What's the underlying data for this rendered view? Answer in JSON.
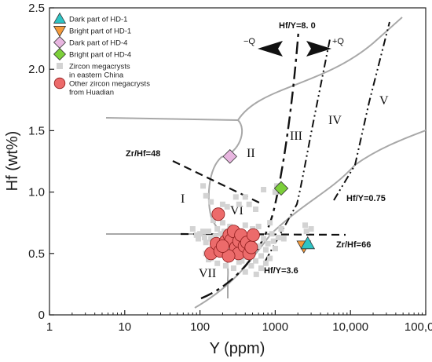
{
  "chart_data": {
    "type": "scatter",
    "xlabel": "Y (ppm)",
    "ylabel": "Hf (wt%)",
    "xscale": "log",
    "xlim": [
      1,
      100000
    ],
    "ylim": [
      0,
      2.5
    ],
    "x_ticks": [
      {
        "value": 1,
        "label": "1"
      },
      {
        "value": 10,
        "label": "10"
      },
      {
        "value": 100,
        "label": "100"
      },
      {
        "value": 1000,
        "label": "1000"
      },
      {
        "value": 10000,
        "label": "10,000"
      },
      {
        "value": 100000,
        "label": "100,000"
      }
    ],
    "y_ticks": [
      {
        "value": 0,
        "label": "0"
      },
      {
        "value": 0.5,
        "label": "0.5"
      },
      {
        "value": 1.0,
        "label": "1.0"
      },
      {
        "value": 1.5,
        "label": "1.5"
      },
      {
        "value": 2.0,
        "label": "2.0"
      },
      {
        "value": 2.5,
        "label": "2.5"
      }
    ],
    "legend_position": "top-left",
    "series": [
      {
        "name": "Dark part of HD-1",
        "marker": "triangle-up",
        "color": "#2ec4c4",
        "points": [
          [
            2700,
            0.58
          ]
        ]
      },
      {
        "name": "Bright part of  HD-1",
        "marker": "triangle-down",
        "color": "#f59a3a",
        "points": [
          [
            2400,
            0.56
          ]
        ]
      },
      {
        "name": "Dark part of HD-4",
        "marker": "diamond",
        "color": "#e8b6e0",
        "points": [
          [
            250,
            1.29
          ]
        ]
      },
      {
        "name": "Bright part of HD-4",
        "marker": "diamond",
        "color": "#7ccf3a",
        "points": [
          [
            1200,
            1.03
          ]
        ]
      },
      {
        "name": "Zircon megacrysts\nin eastern China",
        "marker": "square",
        "color": "#d3d3d3",
        "points": [
          [
            110,
            1.05
          ],
          [
            120,
            0.97
          ],
          [
            140,
            0.92
          ],
          [
            200,
            0.9
          ],
          [
            230,
            0.88
          ],
          [
            300,
            0.96
          ],
          [
            330,
            0.9
          ],
          [
            400,
            0.96
          ],
          [
            450,
            0.9
          ],
          [
            550,
            0.86
          ],
          [
            700,
            1.02
          ],
          [
            1000,
            1.0
          ],
          [
            1050,
            1.05
          ],
          [
            850,
            0.75
          ],
          [
            600,
            0.72
          ],
          [
            150,
            0.77
          ],
          [
            200,
            0.75
          ],
          [
            250,
            0.72
          ],
          [
            300,
            0.7
          ],
          [
            400,
            0.73
          ],
          [
            500,
            0.7
          ],
          [
            80,
            0.7
          ],
          [
            90,
            0.65
          ],
          [
            95,
            0.62
          ],
          [
            100,
            0.66
          ],
          [
            110,
            0.68
          ],
          [
            115,
            0.63
          ],
          [
            120,
            0.59
          ],
          [
            130,
            0.68
          ],
          [
            140,
            0.62
          ],
          [
            150,
            0.56
          ],
          [
            160,
            0.64
          ],
          [
            170,
            0.6
          ],
          [
            180,
            0.54
          ],
          [
            190,
            0.66
          ],
          [
            200,
            0.58
          ],
          [
            210,
            0.5
          ],
          [
            220,
            0.62
          ],
          [
            230,
            0.55
          ],
          [
            240,
            0.47
          ],
          [
            250,
            0.6
          ],
          [
            260,
            0.52
          ],
          [
            280,
            0.57
          ],
          [
            300,
            0.48
          ],
          [
            320,
            0.62
          ],
          [
            340,
            0.55
          ],
          [
            360,
            0.44
          ],
          [
            380,
            0.6
          ],
          [
            400,
            0.52
          ],
          [
            430,
            0.47
          ],
          [
            460,
            0.58
          ],
          [
            500,
            0.5
          ],
          [
            550,
            0.44
          ],
          [
            600,
            0.56
          ],
          [
            650,
            0.48
          ],
          [
            700,
            0.62
          ],
          [
            750,
            0.53
          ],
          [
            800,
            0.58
          ],
          [
            850,
            0.46
          ],
          [
            900,
            0.66
          ],
          [
            950,
            0.6
          ],
          [
            1000,
            0.54
          ],
          [
            1100,
            0.63
          ],
          [
            1200,
            0.7
          ],
          [
            1300,
            0.62
          ],
          [
            2500,
            0.73
          ],
          [
            2600,
            0.68
          ],
          [
            3000,
            0.7
          ],
          [
            140,
            0.46
          ],
          [
            170,
            0.42
          ],
          [
            220,
            0.4
          ],
          [
            280,
            0.38
          ],
          [
            330,
            0.43
          ],
          [
            400,
            0.35
          ],
          [
            480,
            0.4
          ],
          [
            560,
            0.33
          ],
          [
            650,
            0.38
          ],
          [
            750,
            0.42
          ],
          [
            120,
            0.5
          ],
          [
            130,
            0.45
          ],
          [
            210,
            0.68
          ],
          [
            330,
            0.68
          ],
          [
            170,
            0.7
          ],
          [
            420,
            0.64
          ]
        ]
      },
      {
        "name": "Other zircon megacrysts\nfrom Huadian",
        "marker": "circle",
        "color": "#ec6b6b",
        "points": [
          [
            175,
            0.82
          ],
          [
            140,
            0.5
          ],
          [
            165,
            0.58
          ],
          [
            185,
            0.52
          ],
          [
            220,
            0.6
          ],
          [
            245,
            0.65
          ],
          [
            260,
            0.61
          ],
          [
            280,
            0.68
          ],
          [
            300,
            0.55
          ],
          [
            325,
            0.5
          ],
          [
            330,
            0.6
          ],
          [
            350,
            0.65
          ],
          [
            390,
            0.56
          ],
          [
            420,
            0.59
          ],
          [
            450,
            0.5
          ],
          [
            480,
            0.55
          ],
          [
            510,
            0.65
          ],
          [
            240,
            0.48
          ],
          [
            200,
            0.56
          ]
        ]
      }
    ],
    "annotations": [
      {
        "text": "Hf/Y=8. 0"
      },
      {
        "text": "Zr/Hf=48"
      },
      {
        "text": "Hf/Y=0.75"
      },
      {
        "text": "Zr/Hf=66"
      },
      {
        "text": "Hf/Y=3.6"
      },
      {
        "text": "−Q"
      },
      {
        "text": "+Q"
      }
    ],
    "field_labels": [
      "I",
      "II",
      "III",
      "IV",
      "V",
      "VI",
      "VII"
    ]
  }
}
